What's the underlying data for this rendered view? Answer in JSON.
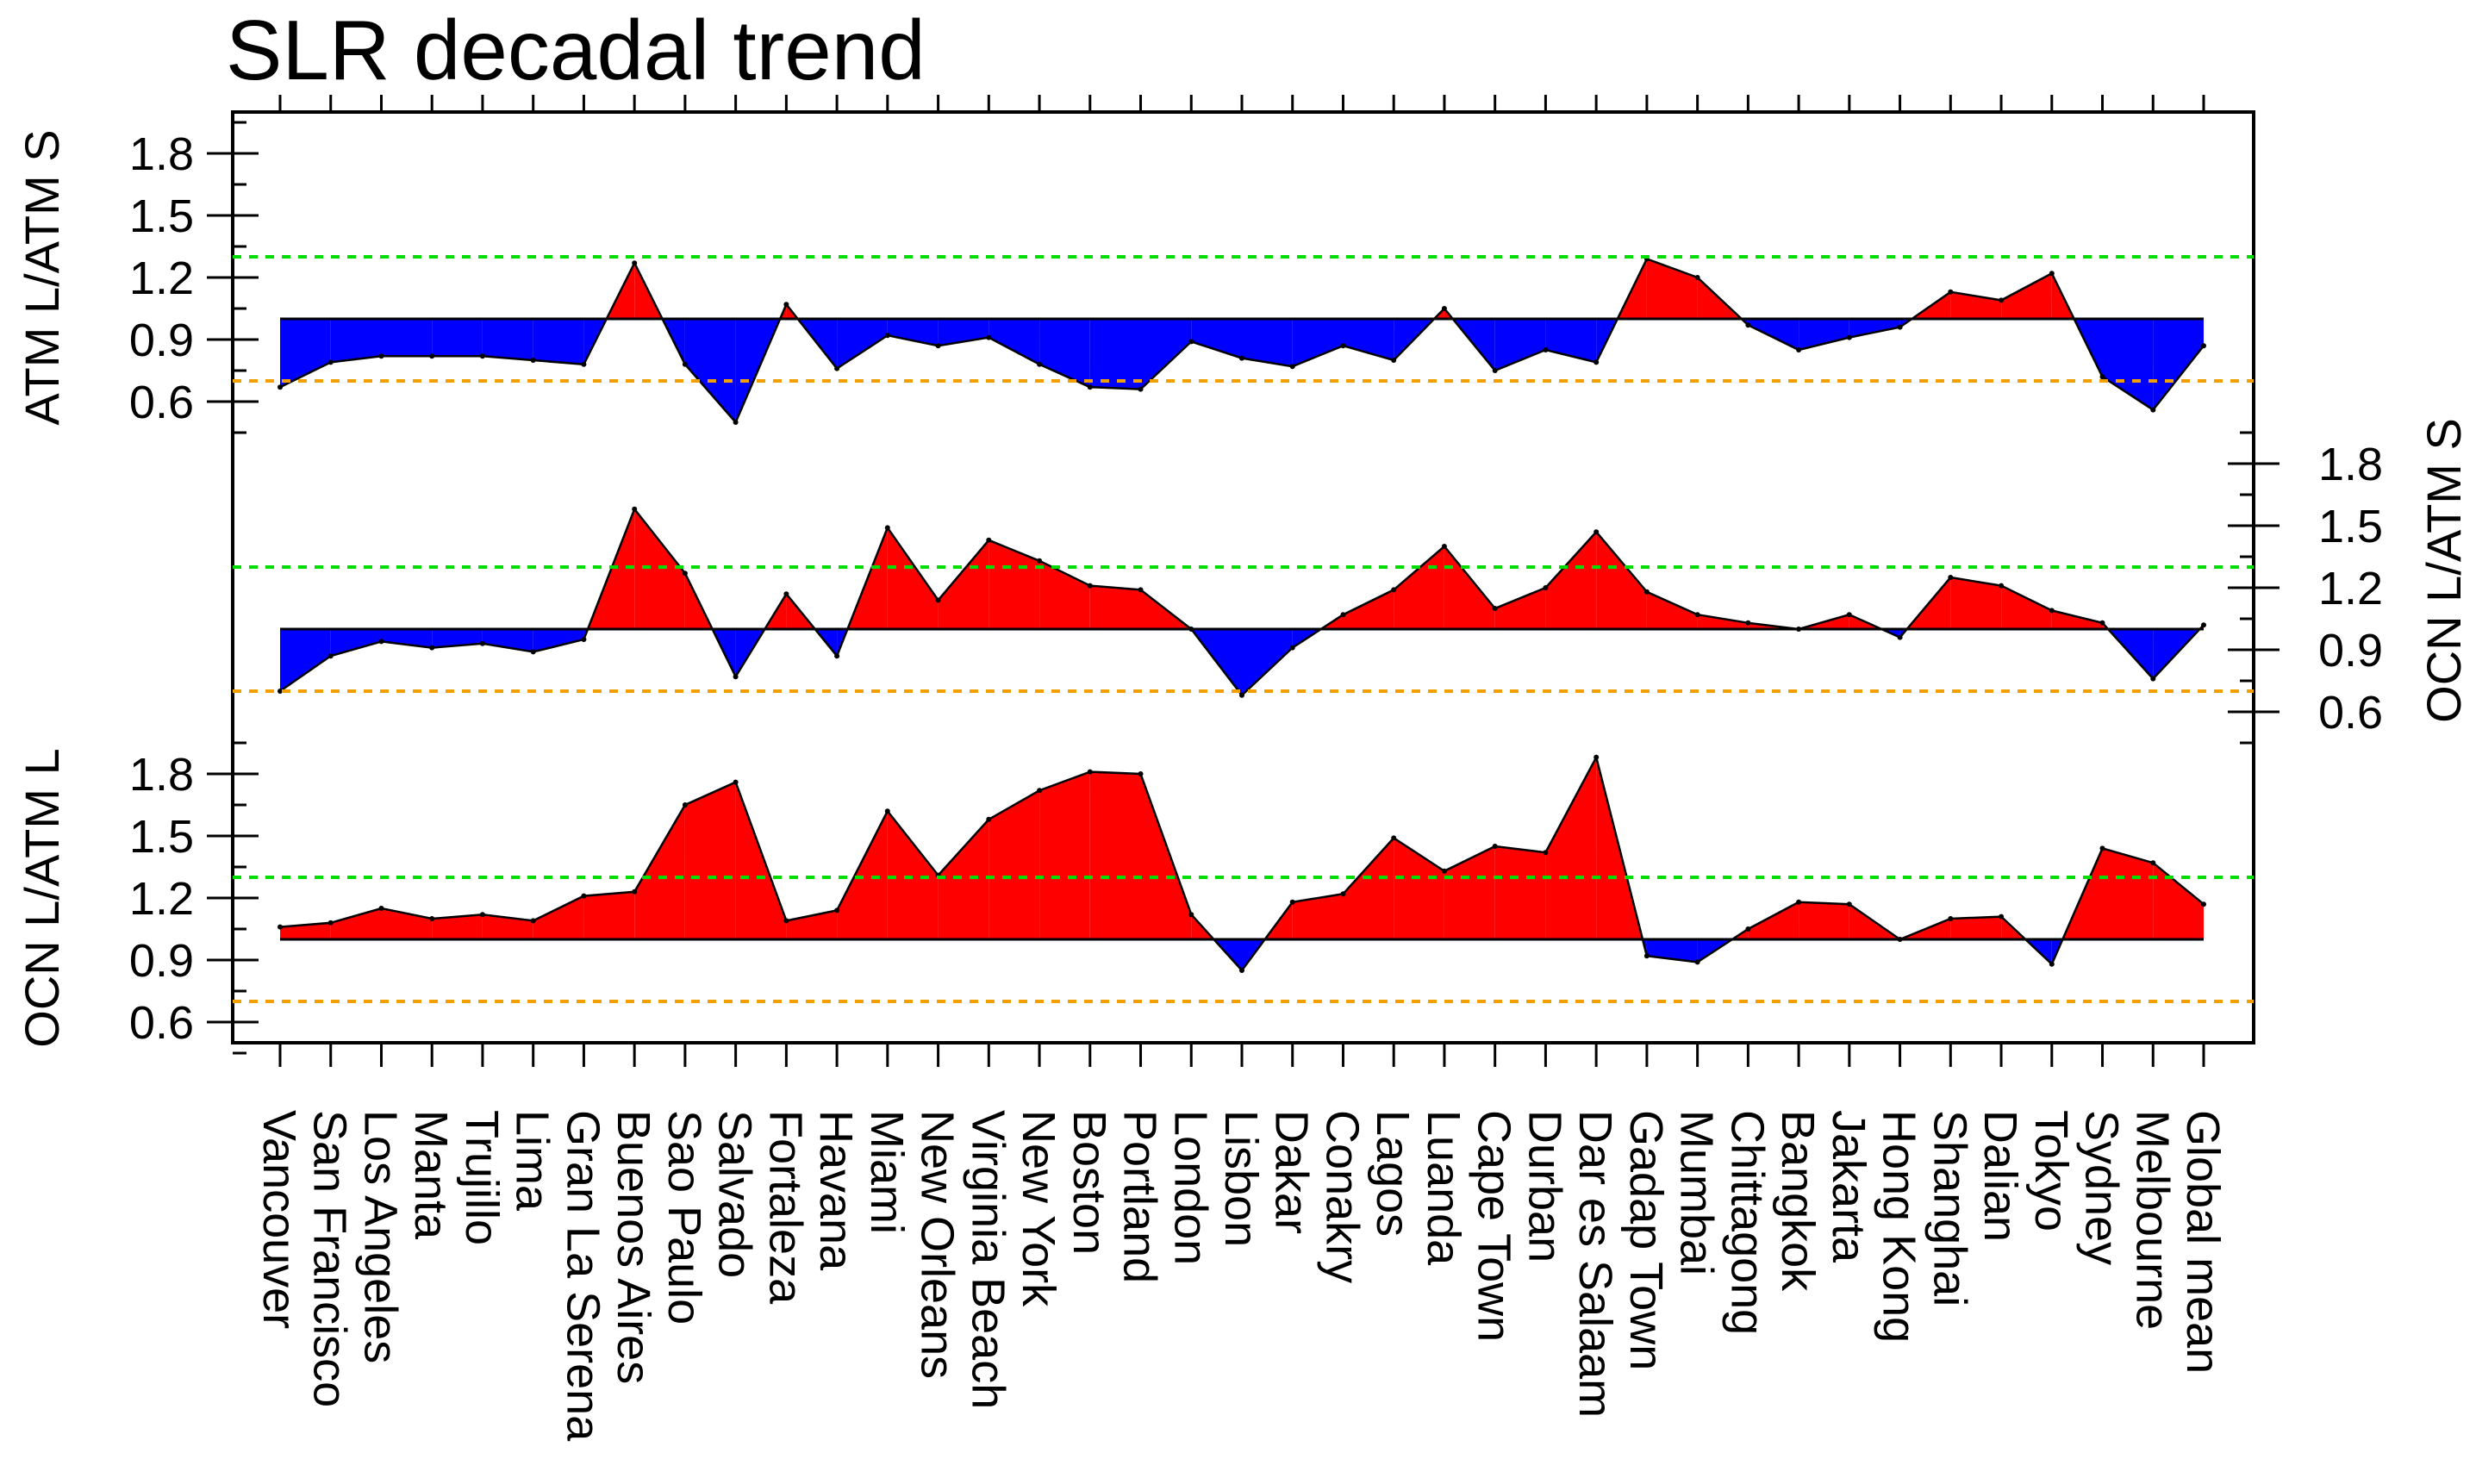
{
  "chart_data": {
    "type": "area",
    "title": "SLR decadal trend",
    "categories": [
      "Vancouver",
      "San Francisco",
      "Los Angeles",
      "Manta",
      "Trujillo",
      "Lima",
      "Gran La Serena",
      "Buenos Aires",
      "Sao Paulo",
      "Salvado",
      "Fortaleza",
      "Havana",
      "Miami",
      "New Orleans",
      "Virginia Beach",
      "New York",
      "Boston",
      "Portland",
      "London",
      "Lisbon",
      "Dakar",
      "Conakry",
      "Lagos",
      "Luanda",
      "Cape Town",
      "Durban",
      "Dar es Salaam",
      "Gadap Town",
      "Mumbai",
      "Chittagong",
      "Bangkok",
      "Jakarta",
      "Hong Kong",
      "Shanghai",
      "Dalian",
      "Tokyo",
      "Sydney",
      "Melbourne",
      "Global mean"
    ],
    "baseline": 1.0,
    "reference_lines": [
      {
        "value": 1.3,
        "color": "#00dd00",
        "style": "dashed"
      },
      {
        "value": 0.7,
        "color": "#f0a000",
        "style": "dashed"
      }
    ],
    "colors": {
      "above": "#ff0000",
      "below": "#0000ff",
      "baseline": "#000000"
    },
    "ytick_values": [
      0.6,
      0.9,
      1.2,
      1.5,
      1.8
    ],
    "ytick_labels": [
      "0.6",
      "0.9",
      "1.2",
      "1.5",
      "1.8"
    ],
    "series": [
      {
        "name": "ATM L/ATM S",
        "ylabel": "ATM L/ATM S",
        "ylabel_side": "left",
        "values": [
          0.67,
          0.79,
          0.82,
          0.82,
          0.82,
          0.8,
          0.78,
          1.27,
          0.78,
          0.5,
          1.07,
          0.76,
          0.92,
          0.87,
          0.91,
          0.78,
          0.67,
          0.66,
          0.89,
          0.81,
          0.77,
          0.87,
          0.8,
          1.05,
          0.75,
          0.85,
          0.79,
          1.29,
          1.2,
          0.97,
          0.85,
          0.91,
          0.96,
          1.13,
          1.09,
          1.22,
          0.72,
          0.56,
          0.87
        ]
      },
      {
        "name": "OCN L/ATM S",
        "ylabel": "OCN L/ATM S",
        "ylabel_side": "right",
        "values": [
          0.7,
          0.87,
          0.94,
          0.91,
          0.93,
          0.89,
          0.95,
          1.58,
          1.27,
          0.77,
          1.17,
          0.87,
          1.49,
          1.14,
          1.43,
          1.33,
          1.21,
          1.19,
          1.0,
          0.68,
          0.91,
          1.07,
          1.19,
          1.4,
          1.1,
          1.2,
          1.47,
          1.18,
          1.07,
          1.03,
          1.0,
          1.07,
          0.96,
          1.25,
          1.21,
          1.09,
          1.03,
          0.76,
          1.02
        ]
      },
      {
        "name": "OCN L/ATM L",
        "ylabel": "OCN L/ATM L",
        "ylabel_side": "left",
        "values": [
          1.06,
          1.08,
          1.15,
          1.1,
          1.12,
          1.09,
          1.21,
          1.23,
          1.65,
          1.76,
          1.09,
          1.14,
          1.62,
          1.31,
          1.58,
          1.72,
          1.81,
          1.8,
          1.12,
          0.85,
          1.18,
          1.22,
          1.49,
          1.33,
          1.45,
          1.42,
          1.88,
          0.92,
          0.89,
          1.05,
          1.18,
          1.17,
          1.0,
          1.1,
          1.11,
          0.88,
          1.44,
          1.37,
          1.17
        ]
      }
    ]
  }
}
